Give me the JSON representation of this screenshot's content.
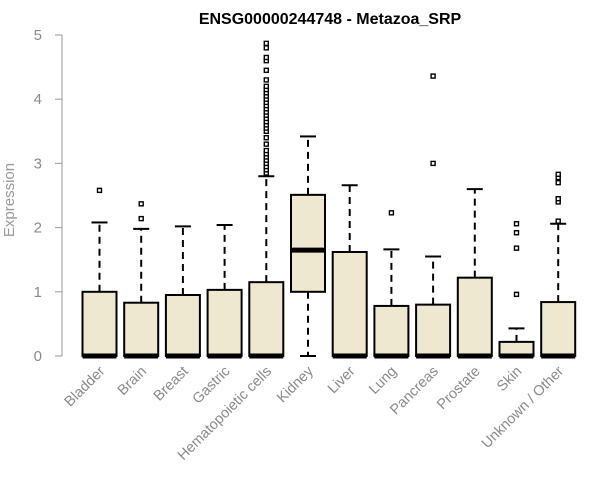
{
  "chart_data": {
    "type": "boxplot",
    "title": "ENSG00000244748 - Metazoa_SRP",
    "xlabel": "",
    "ylabel": "Expression",
    "ylim": [
      0,
      5
    ],
    "yticks": [
      0,
      1,
      2,
      3,
      4,
      5
    ],
    "box_fill": "#efe8d0",
    "categories": [
      "Bladder",
      "Brain",
      "Breast",
      "Gastric",
      "Hematopoietic cells",
      "Kidney",
      "Liver",
      "Lung",
      "Pancreas",
      "Prostate",
      "Skin",
      "Unknown / Other"
    ],
    "boxes": [
      {
        "q1": 0,
        "median": 0,
        "q3": 1.0,
        "whisker_low": 0,
        "whisker_high": 2.08,
        "outliers": [
          2.58
        ]
      },
      {
        "q1": 0,
        "median": 0,
        "q3": 0.83,
        "whisker_low": 0,
        "whisker_high": 1.98,
        "outliers": [
          2.14,
          2.37
        ]
      },
      {
        "q1": 0,
        "median": 0,
        "q3": 0.95,
        "whisker_low": 0,
        "whisker_high": 2.02,
        "outliers": []
      },
      {
        "q1": 0,
        "median": 0,
        "q3": 1.03,
        "whisker_low": 0,
        "whisker_high": 2.04,
        "outliers": []
      },
      {
        "q1": 0,
        "median": 0,
        "q3": 1.15,
        "whisker_low": 0,
        "whisker_high": 2.8,
        "outliers": [
          2.85,
          2.9,
          2.95,
          3.0,
          3.05,
          3.1,
          3.15,
          3.2,
          3.3,
          3.4,
          3.5,
          3.55,
          3.6,
          3.65,
          3.7,
          3.75,
          3.8,
          3.85,
          3.9,
          3.95,
          4.0,
          4.05,
          4.1,
          4.15,
          4.2,
          4.3,
          4.45,
          4.6,
          4.65,
          4.8,
          4.87
        ]
      },
      {
        "q1": 1.0,
        "median": 1.65,
        "q3": 2.51,
        "whisker_low": 0,
        "whisker_high": 3.42,
        "outliers": []
      },
      {
        "q1": 0,
        "median": 0,
        "q3": 1.62,
        "whisker_low": 0,
        "whisker_high": 2.66,
        "outliers": []
      },
      {
        "q1": 0,
        "median": 0,
        "q3": 0.78,
        "whisker_low": 0,
        "whisker_high": 1.66,
        "outliers": [
          2.23
        ]
      },
      {
        "q1": 0,
        "median": 0,
        "q3": 0.8,
        "whisker_low": 0,
        "whisker_high": 1.55,
        "outliers": [
          3.0,
          4.36
        ]
      },
      {
        "q1": 0,
        "median": 0,
        "q3": 1.22,
        "whisker_low": 0,
        "whisker_high": 2.6,
        "outliers": []
      },
      {
        "q1": 0,
        "median": 0,
        "q3": 0.22,
        "whisker_low": 0,
        "whisker_high": 0.43,
        "outliers": [
          0.96,
          1.68,
          1.92,
          2.06
        ]
      },
      {
        "q1": 0,
        "median": 0,
        "q3": 0.84,
        "whisker_low": 0,
        "whisker_high": 2.06,
        "outliers": [
          2.1,
          2.4,
          2.45,
          2.7,
          2.78,
          2.83
        ]
      }
    ]
  }
}
